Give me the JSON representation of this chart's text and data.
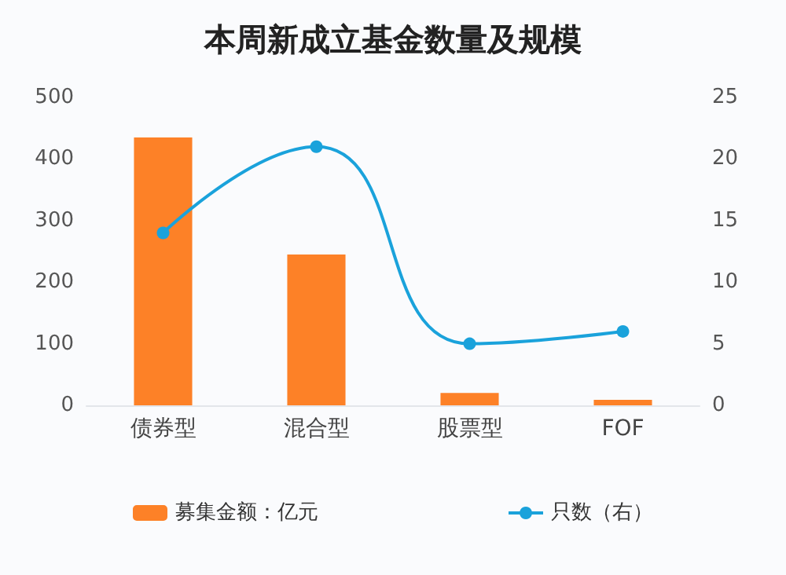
{
  "chart_data": {
    "type": "bar",
    "title": "本周新成立基金数量及规模",
    "categories": [
      "债券型",
      "混合型",
      "股票型",
      "FOF"
    ],
    "series": [
      {
        "name": "募集金额：亿元",
        "color": "#fd8127",
        "values": [
          435,
          245,
          20,
          9
        ]
      },
      {
        "name": "只数（右）",
        "type": "line",
        "axis": "y2",
        "color": "#1aa2db",
        "marker": "circle",
        "values": [
          14,
          21,
          5,
          6
        ]
      }
    ],
    "ylim": [
      0,
      500
    ],
    "yticks": [
      0,
      100,
      200,
      300,
      400,
      500
    ],
    "y2lim": [
      0,
      25
    ],
    "y2ticks": [
      0,
      5,
      10,
      15,
      20,
      25
    ],
    "grid": false,
    "legend": "bottom"
  }
}
